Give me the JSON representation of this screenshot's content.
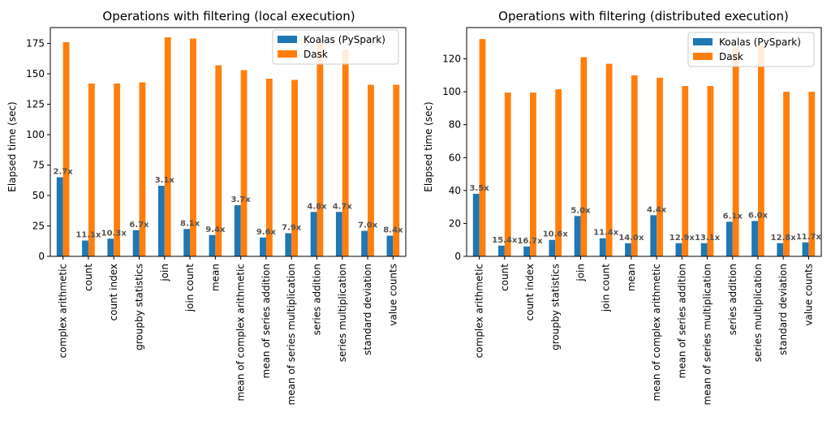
{
  "chart_data": [
    {
      "type": "bar",
      "title": "Operations with filtering (local execution)",
      "xlabel": "",
      "ylabel": "Elapsed time (sec)",
      "ylim": [
        0,
        188
      ],
      "yticks": [
        0,
        25,
        50,
        75,
        100,
        125,
        150,
        175
      ],
      "legend_position": "top-right",
      "categories": [
        "complex arithmetic",
        "count",
        "count index",
        "groupby statistics",
        "join",
        "join count",
        "mean",
        "mean of complex arithmetic",
        "mean of series addition",
        "mean of series multiplication",
        "series addition",
        "series multiplication",
        "standard deviation",
        "value counts"
      ],
      "series": [
        {
          "name": "Koalas (PySpark)",
          "color": "#1f77b4",
          "values": [
            65,
            13,
            14.5,
            21.5,
            58,
            22.5,
            17.5,
            42,
            15.5,
            19,
            36.5,
            36.5,
            21,
            17
          ]
        },
        {
          "name": "Dask",
          "color": "#ff7f0e",
          "values": [
            176,
            142,
            142,
            143,
            180,
            179,
            157,
            153,
            146,
            145,
            175,
            170,
            141,
            141
          ]
        }
      ],
      "annotations": [
        "2.7x",
        "11.1x",
        "10.3x",
        "6.7x",
        "3.1x",
        "8.1x",
        "9.4x",
        "3.7x",
        "9.6x",
        "7.9x",
        "4.8x",
        "4.7x",
        "7.0x",
        "8.4x"
      ]
    },
    {
      "type": "bar",
      "title": "Operations with filtering (distributed execution)",
      "xlabel": "",
      "ylabel": "Elapsed time (sec)",
      "ylim": [
        0,
        139
      ],
      "yticks": [
        0,
        20,
        40,
        60,
        80,
        100,
        120
      ],
      "legend_position": "top-right",
      "categories": [
        "complex arithmetic",
        "count",
        "count index",
        "groupby statistics",
        "join",
        "join count",
        "mean",
        "mean of complex arithmetic",
        "mean of series addition",
        "mean of series multiplication",
        "series addition",
        "series multiplication",
        "standard deviation",
        "value counts"
      ],
      "series": [
        {
          "name": "Koalas (PySpark)",
          "color": "#1f77b4",
          "values": [
            38,
            6.5,
            6,
            10,
            24.5,
            11,
            8,
            25,
            8,
            8,
            21,
            21.5,
            8,
            8.5
          ]
        },
        {
          "name": "Dask",
          "color": "#ff7f0e",
          "values": [
            132,
            99.5,
            99.5,
            101.5,
            121,
            117,
            110,
            108.5,
            103.5,
            103.5,
            128,
            128,
            100,
            100
          ]
        }
      ],
      "annotations": [
        "3.5x",
        "15.4x",
        "16.7x",
        "10.6x",
        "5.0x",
        "11.4x",
        "14.0x",
        "4.4x",
        "12.9x",
        "13.1x",
        "6.1x",
        "6.0x",
        "12.8x",
        "11.7x"
      ]
    }
  ]
}
